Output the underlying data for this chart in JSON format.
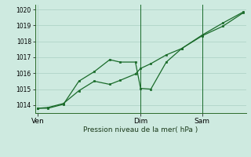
{
  "title": "Pression niveau de la mer( hPa )",
  "bg_color": "#ceeae0",
  "grid_color": "#b0d4c8",
  "line_color": "#1a6b2a",
  "marker_color": "#1a6b2a",
  "ylim": [
    1013.5,
    1020.3
  ],
  "yticks": [
    1014,
    1015,
    1016,
    1017,
    1018,
    1019,
    1020
  ],
  "xlim": [
    -0.5,
    40.5
  ],
  "xtick_positions": [
    0,
    20,
    32
  ],
  "xtick_labels": [
    "Ven",
    "Dim",
    "Sam"
  ],
  "series1_x": [
    0,
    2,
    5,
    8,
    11,
    14,
    16,
    19,
    20,
    22,
    25,
    28,
    32,
    36,
    40
  ],
  "series1_y": [
    1013.8,
    1013.8,
    1014.05,
    1015.5,
    1016.1,
    1016.85,
    1016.7,
    1016.7,
    1015.05,
    1015.0,
    1016.7,
    1017.55,
    1018.4,
    1019.15,
    1019.85
  ],
  "series2_x": [
    0,
    2,
    5,
    8,
    11,
    14,
    16,
    19,
    20,
    22,
    25,
    28,
    32,
    36,
    40
  ],
  "series2_y": [
    1013.8,
    1013.85,
    1014.1,
    1014.9,
    1015.5,
    1015.3,
    1015.55,
    1015.95,
    1016.3,
    1016.6,
    1017.15,
    1017.55,
    1018.35,
    1018.95,
    1019.8
  ],
  "vline_x": 20,
  "vline2_x": 32,
  "figsize": [
    3.2,
    2.0
  ],
  "dpi": 100
}
